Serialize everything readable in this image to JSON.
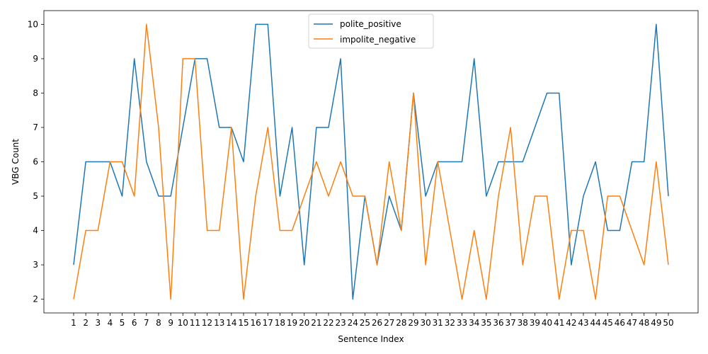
{
  "chart_data": {
    "type": "line",
    "xlabel": "Sentence Index",
    "ylabel": "VBG Count",
    "x": [
      1,
      2,
      3,
      4,
      5,
      6,
      7,
      8,
      9,
      10,
      11,
      12,
      13,
      14,
      15,
      16,
      17,
      18,
      19,
      20,
      21,
      22,
      23,
      24,
      25,
      26,
      27,
      28,
      29,
      30,
      31,
      32,
      33,
      34,
      35,
      36,
      37,
      38,
      39,
      40,
      41,
      42,
      43,
      44,
      45,
      46,
      47,
      48,
      49,
      50
    ],
    "xticks": [
      "1",
      "2",
      "3",
      "4",
      "5",
      "6",
      "7",
      "8",
      "9",
      "10",
      "11",
      "12",
      "13",
      "14",
      "15",
      "16",
      "17",
      "18",
      "19",
      "20",
      "21",
      "22",
      "23",
      "24",
      "25",
      "26",
      "27",
      "28",
      "29",
      "30",
      "31",
      "32",
      "33",
      "34",
      "35",
      "36",
      "37",
      "38",
      "39",
      "40",
      "41",
      "42",
      "43",
      "44",
      "45",
      "46",
      "47",
      "48",
      "49",
      "50"
    ],
    "yticks": [
      "2",
      "3",
      "4",
      "5",
      "6",
      "7",
      "8",
      "9",
      "10"
    ],
    "ylim": [
      1.6,
      10.4
    ],
    "grid": false,
    "legend_position": "top-center",
    "series": [
      {
        "name": "polite_positive",
        "color": "#1f77b4",
        "values": [
          3,
          6,
          6,
          6,
          5,
          9,
          6,
          5,
          5,
          7,
          9,
          9,
          7,
          7,
          6,
          10,
          10,
          5,
          7,
          3,
          7,
          7,
          9,
          2,
          5,
          3,
          5,
          4,
          8,
          5,
          6,
          6,
          6,
          9,
          5,
          6,
          6,
          6,
          7,
          8,
          8,
          3,
          5,
          6,
          4,
          4,
          6,
          6,
          10,
          5
        ]
      },
      {
        "name": "impolite_negative",
        "color": "#ff7f0e",
        "values": [
          2,
          4,
          4,
          6,
          6,
          5,
          10,
          7,
          2,
          9,
          9,
          4,
          4,
          7,
          2,
          5,
          7,
          4,
          4,
          5,
          6,
          5,
          6,
          5,
          5,
          3,
          6,
          4,
          8,
          3,
          6,
          4,
          2,
          4,
          2,
          5,
          7,
          3,
          5,
          5,
          2,
          4,
          4,
          2,
          5,
          5,
          4,
          3,
          6,
          3
        ]
      }
    ]
  }
}
